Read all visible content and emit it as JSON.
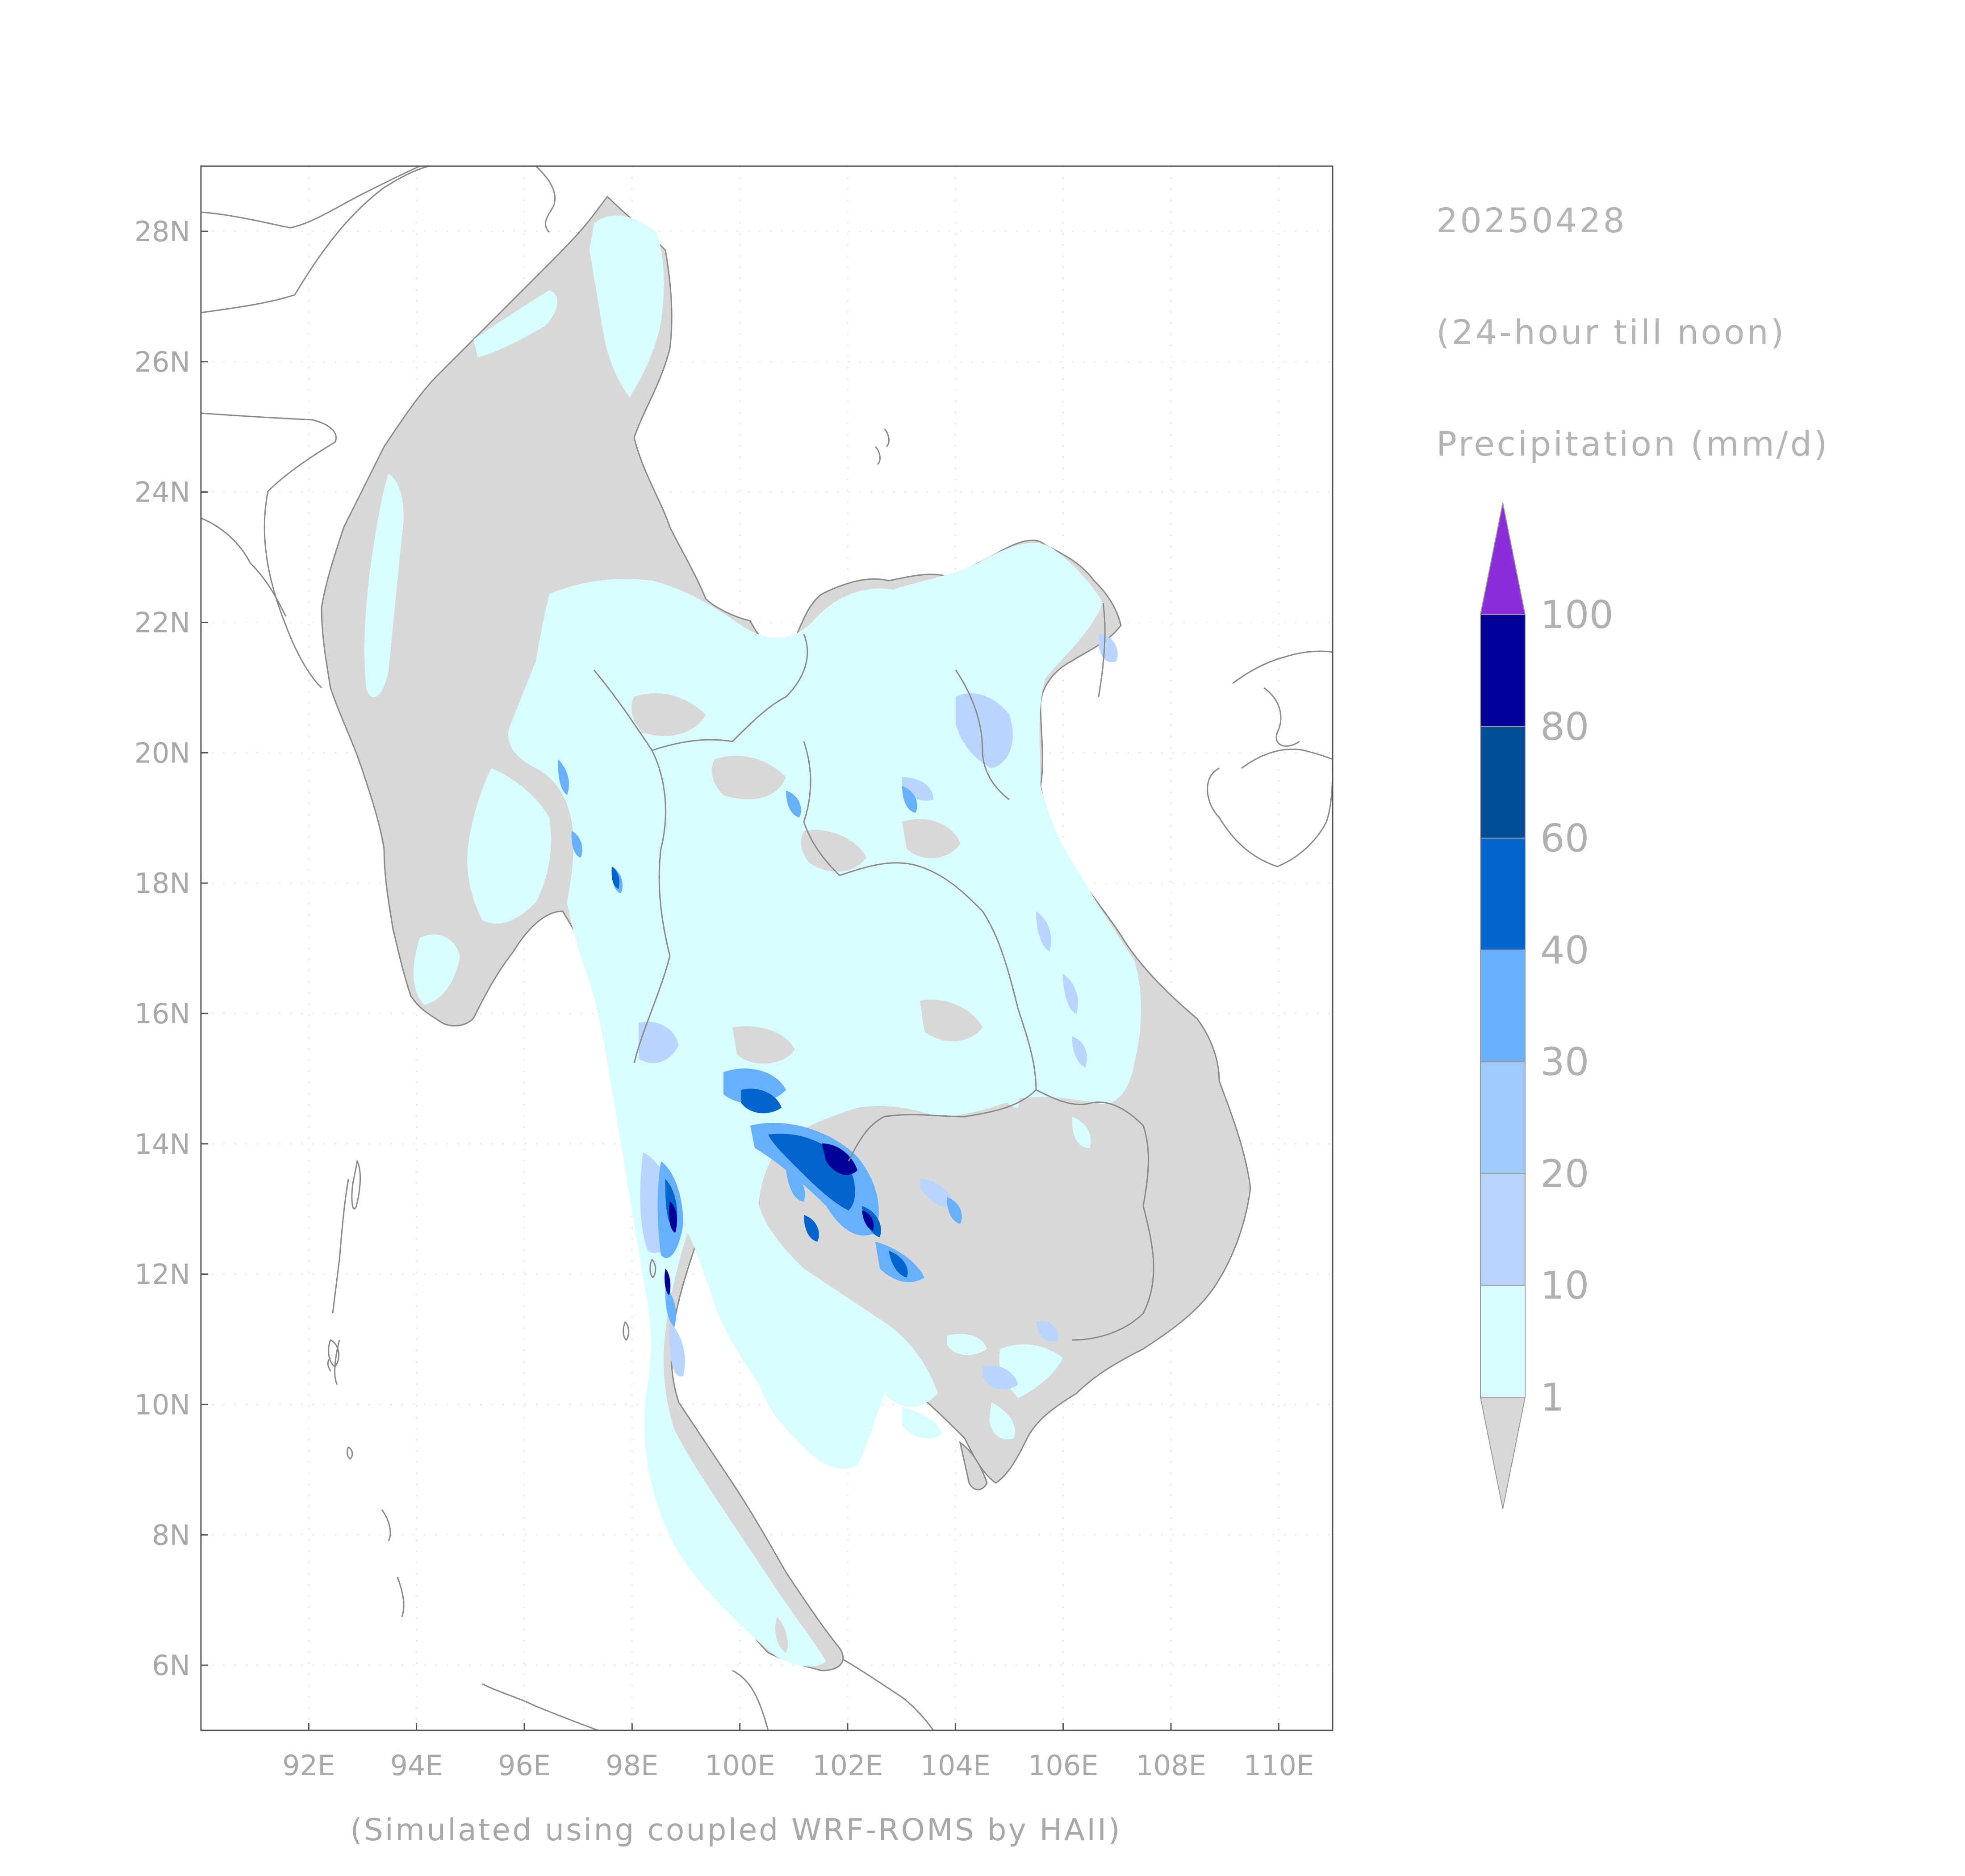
{
  "header": {
    "date": "20250428",
    "period": "(24-hour till noon)",
    "variable": "Precipitation (mm/d)"
  },
  "footer": {
    "credit": "(Simulated using coupled WRF-ROMS by HAII)"
  },
  "map": {
    "lon_range": [
      90,
      111
    ],
    "lat_range": [
      5,
      29
    ],
    "lon_ticks": [
      "92E",
      "94E",
      "96E",
      "98E",
      "100E",
      "102E",
      "104E",
      "106E",
      "108E",
      "110E"
    ],
    "lat_ticks": [
      "6N",
      "8N",
      "10N",
      "12N",
      "14N",
      "16N",
      "18N",
      "20N",
      "22N",
      "24N",
      "26N",
      "28N"
    ],
    "land_dry_color": "#d8d8d8",
    "outline_color": "#8a8a8a"
  },
  "legend": {
    "levels": [
      "1",
      "10",
      "20",
      "30",
      "40",
      "60",
      "80",
      "100"
    ],
    "colors": {
      "below_1": "#d8d8d8",
      "1_10": "#d9fcff",
      "10_20": "#b9d5ff",
      "20_30": "#9dcbff",
      "30_40": "#66b0ff",
      "40_60": "#0064cc",
      "60_80": "#004c96",
      "80_100": "#000096",
      "above_100": "#8c2ddc"
    }
  }
}
